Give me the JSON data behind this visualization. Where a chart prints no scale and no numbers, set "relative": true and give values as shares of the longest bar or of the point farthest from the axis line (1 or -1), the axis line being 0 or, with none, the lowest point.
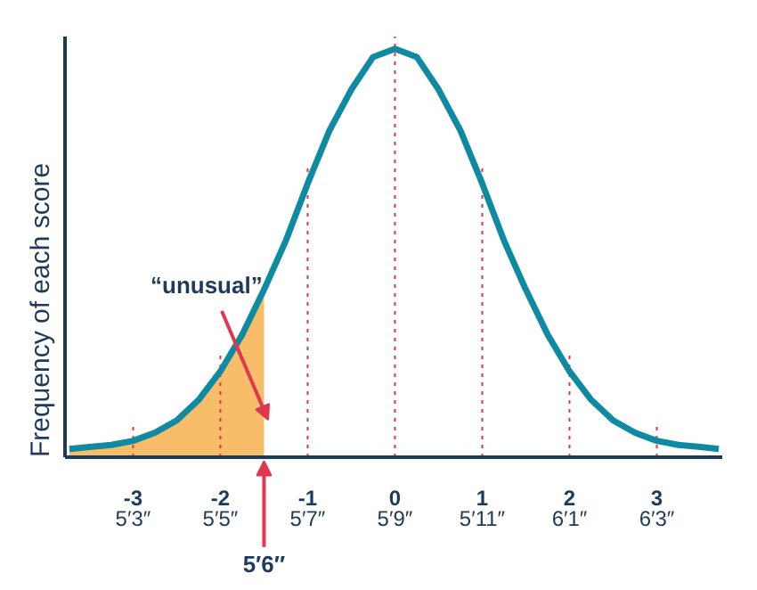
{
  "chart_data": {
    "type": "line",
    "relative": true,
    "ylabel": "Frequency of each score",
    "x": [
      -3.73,
      -3.5,
      -3.25,
      -3,
      -2.75,
      -2.5,
      -2.25,
      -2,
      -1.75,
      -1.5,
      -1.25,
      -1,
      -0.75,
      -0.5,
      -0.25,
      0,
      0.25,
      0.5,
      0.75,
      1,
      1.25,
      1.5,
      1.75,
      2,
      2.25,
      2.5,
      2.75,
      3,
      3.25,
      3.5,
      3.71
    ],
    "series": [
      {
        "type": "area",
        "color": "#f7bd68",
        "x": [
          -3.73,
          -3.5,
          -3.25,
          -3,
          -2.75,
          -2.5,
          -2.25,
          -2,
          -1.75,
          -1.5
        ],
        "values": [
          0.02,
          0.025,
          0.03,
          0.04,
          0.06,
          0.09,
          0.14,
          0.21,
          0.3,
          0.41
        ]
      },
      {
        "color": "#0e8aa3",
        "values": [
          0.02,
          0.025,
          0.03,
          0.04,
          0.06,
          0.09,
          0.14,
          0.21,
          0.3,
          0.41,
          0.53,
          0.67,
          0.8,
          0.9,
          0.98,
          1,
          0.98,
          0.9,
          0.8,
          0.67,
          0.53,
          0.41,
          0.3,
          0.21,
          0.14,
          0.09,
          0.06,
          0.04,
          0.03,
          0.025,
          0.02
        ]
      }
    ],
    "xlim": [
      -3.78,
      3.75
    ],
    "xticks": [
      -3,
      -2,
      -1,
      0,
      1,
      2,
      3
    ],
    "tick_labels": "x",
    "grid": false,
    "marker": "none",
    "line_style": "solid",
    "ref_lines": [
      {
        "axis": "x",
        "value": -3,
        "color": "#e0364f",
        "line_style": "dotted"
      },
      {
        "axis": "x",
        "value": -2,
        "color": "#e0364f",
        "line_style": "dotted"
      },
      {
        "axis": "x",
        "value": -1,
        "color": "#e0364f",
        "line_style": "dotted"
      },
      {
        "axis": "x",
        "value": 0,
        "color": "#e0364f",
        "line_style": "dotted"
      },
      {
        "axis": "x",
        "value": 1,
        "color": "#e0364f",
        "line_style": "dotted"
      },
      {
        "axis": "x",
        "value": 2,
        "color": "#e0364f",
        "line_style": "dotted"
      },
      {
        "axis": "x",
        "value": 3,
        "color": "#e0364f",
        "line_style": "dotted"
      }
    ],
    "annotations": [
      "“unusual”",
      "5′6″",
      "5′3″",
      "5′5″",
      "5′7″",
      "5′9″",
      "5′11″",
      "6′1″",
      "6′3″"
    ]
  }
}
